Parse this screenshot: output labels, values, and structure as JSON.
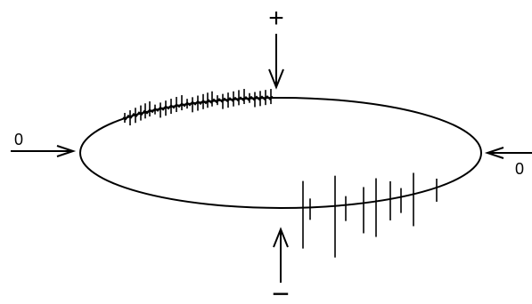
{
  "labels": {
    "top": "+",
    "bottom": "−",
    "left": "0",
    "right": "0"
  },
  "colors": {
    "ink": "#000000",
    "background": "#ffffff"
  }
}
